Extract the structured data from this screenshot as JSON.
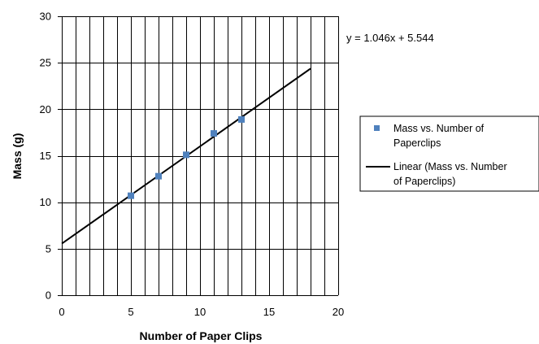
{
  "chart_data": {
    "type": "scatter",
    "title": "",
    "xlabel": "Number of Paper Clips",
    "ylabel": "Mass (g)",
    "xlim": [
      0,
      20
    ],
    "ylim": [
      0,
      30
    ],
    "x_ticks": [
      0,
      5,
      10,
      15,
      20
    ],
    "y_ticks": [
      0,
      5,
      10,
      15,
      20,
      25,
      30
    ],
    "x_gridline_step": 1,
    "y_gridline_step": 5,
    "grid": true,
    "legend_position": "right",
    "series": [
      {
        "name": "Mass vs. Number of Paperclips",
        "kind": "scatter",
        "color": "#4f81bd",
        "marker": "square",
        "x": [
          5,
          7,
          9,
          11,
          13
        ],
        "y": [
          10.7,
          12.8,
          15.1,
          17.4,
          18.9
        ]
      },
      {
        "name": "Linear (Mass vs. Number of Paperclips)",
        "kind": "trendline",
        "color": "#000000",
        "slope": 1.046,
        "intercept": 5.544,
        "x_range": [
          0,
          18
        ]
      }
    ],
    "equation_label": "y = 1.046x + 5.544"
  },
  "legend": {
    "line1_scatter": "Mass vs. Number of",
    "line2_scatter": "Paperclips",
    "line1_trend": "Linear (Mass vs. Number",
    "line2_trend": "of Paperclips)"
  }
}
